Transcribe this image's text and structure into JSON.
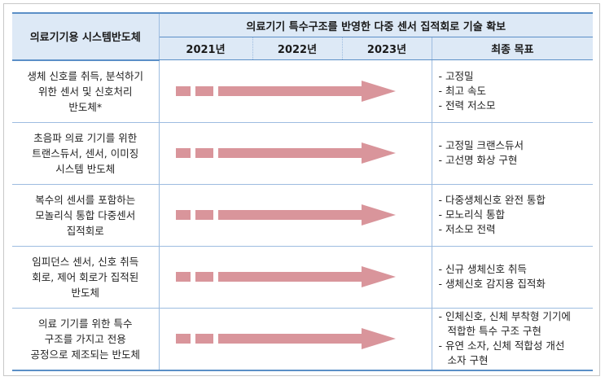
{
  "table": {
    "header": {
      "row_label": "의료기기용 시스템반도체",
      "goal_title": "의료기기 특수구조를 반영한 다중 센서 집적회로 기술 확보",
      "years": [
        "2021년",
        "2022년",
        "2023년"
      ],
      "final": "최종 목표"
    },
    "rows": [
      {
        "label": [
          "생체 신호를 취득, 분석하기",
          "위한 센서 및 신호처리",
          "반도체*"
        ],
        "goals": [
          [
            "- 고정밀"
          ],
          [
            "- 최고 속도"
          ],
          [
            "- 전력 저소모"
          ]
        ]
      },
      {
        "label": [
          "초음파 의료 기기를 위한",
          "트랜스듀서, 센서, 이미징",
          "시스템 반도체"
        ],
        "goals": [
          [
            "- 고정밀 크랜스듀서"
          ],
          [
            "- 고선명 화상 구현"
          ]
        ]
      },
      {
        "label": [
          "복수의 센서를 포함하는",
          "모놀리식 통합 다중센서",
          "집적회로"
        ],
        "goals": [
          [
            "- 다중생체신호 완전 통합"
          ],
          [
            "- 모노리식 통합"
          ],
          [
            "- 저소모 전력"
          ]
        ]
      },
      {
        "label": [
          "임피던스 센서, 신호 취득",
          "회로, 제어 회로가 집적된",
          "반도체"
        ],
        "goals": [
          [
            "- 신규 생체신호 취득"
          ],
          [
            "- 생체신호 감지용 집적화"
          ]
        ]
      },
      {
        "label": [
          "의료 기기를 위한 특수",
          "구조를 가지고 전용",
          "공정으로 제조되는 반도체"
        ],
        "goals": [
          [
            "- 인체신호, 신체 부착형 기기에",
            "적합한 특수 구조 구현"
          ],
          [
            "- 유연 소자, 신체 적합성 개선",
            "소자 구현"
          ]
        ]
      }
    ]
  }
}
